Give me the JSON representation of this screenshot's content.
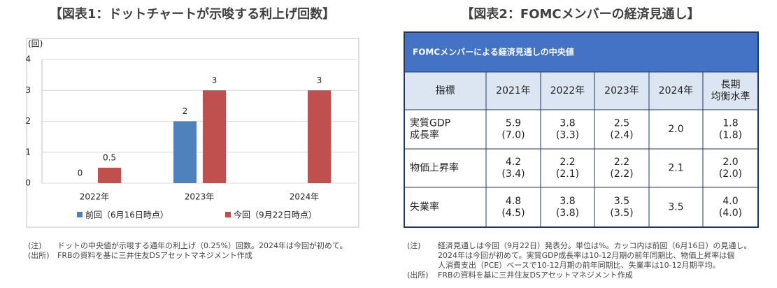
{
  "chart_data": {
    "type": "bar",
    "title": "【図表1：ドットチャートが示唆する利上げ回数】",
    "y_label": "(回)",
    "categories": [
      "2022年",
      "2023年",
      "2024年"
    ],
    "series": [
      {
        "name": "前回（6月16日時点）",
        "color": "#4f81bd",
        "values": [
          0,
          2,
          null
        ]
      },
      {
        "name": "今回（9月22日時点）",
        "color": "#c0504d",
        "values": [
          0.5,
          3,
          3
        ]
      }
    ],
    "ylim": [
      0,
      4
    ],
    "yticks": [
      0,
      1,
      2,
      3,
      4
    ],
    "grid": true,
    "legend": "bottom"
  },
  "chart_notes": [
    {
      "label": "(注)",
      "lines": [
        "ドットの中央値が示唆する通年の利上げ（0.25%）回数。2024年は今回が初めて。"
      ]
    },
    {
      "label": "(出所)",
      "lines": [
        "FRBの資料を基に三井住友DSアセットマネジメント作成"
      ]
    }
  ],
  "table": {
    "title": "【図表2：FOMCメンバーの経済見通し】",
    "caption": "FOMCメンバーによる経済見通しの中央値",
    "header": [
      [
        "指標"
      ],
      [
        "2021年"
      ],
      [
        "2022年"
      ],
      [
        "2023年"
      ],
      [
        "2024年"
      ],
      [
        "長期",
        "均衡水準"
      ]
    ],
    "rows": [
      [
        [
          "実質GDP",
          "成長率"
        ],
        [
          "5.9",
          "(7.0)"
        ],
        [
          "3.8",
          "(3.3)"
        ],
        [
          "2.5",
          "(2.4)"
        ],
        [
          "2.0"
        ],
        [
          "1.8",
          "(1.8)"
        ]
      ],
      [
        [
          "物価上昇率"
        ],
        [
          "4.2",
          "(3.4)"
        ],
        [
          "2.2",
          "(2.1)"
        ],
        [
          "2.2",
          "(2.2)"
        ],
        [
          "2.1"
        ],
        [
          "2.0",
          "(2.0)"
        ]
      ],
      [
        [
          "失業率"
        ],
        [
          "4.8",
          "(4.5)"
        ],
        [
          "3.8",
          "(3.8)"
        ],
        [
          "3.5",
          "(3.5)"
        ],
        [
          "3.5"
        ],
        [
          "4.0",
          "(4.0)"
        ]
      ]
    ]
  },
  "table_notes": [
    {
      "label": "(注)",
      "lines": [
        "経済見通しは今回（9月22日）発表分。単位は%。カッコ内は前回（6月16日）の見通し。",
        "2024年は今回が初めて。実質GDP成長率は10-12月期の前年同期比、物価上昇率は個",
        "人消費支出（PCE）ベースで10-12月期の前年同期比、失業率は10-12月期平均。"
      ]
    },
    {
      "label": "(出所)",
      "lines": [
        "FRBの資料を基に三井住友DSアセットマネジメント作成"
      ]
    }
  ]
}
